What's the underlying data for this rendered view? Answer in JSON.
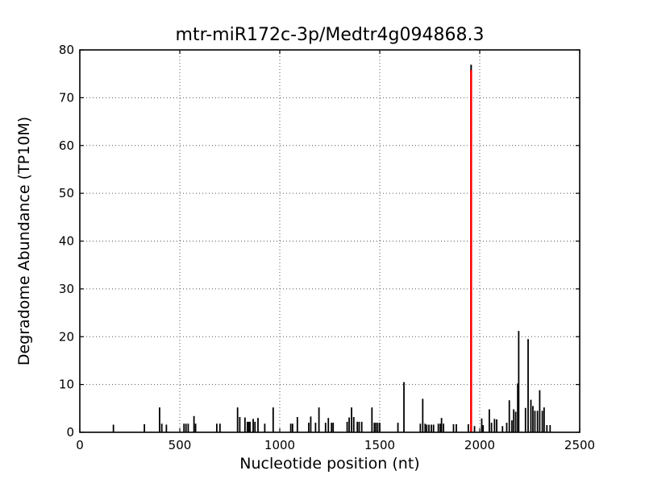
{
  "chart_data": {
    "type": "bar",
    "title": "mtr-miR172c-3p/Medtr4g094868.3",
    "xlabel": "Nucleotide position (nt)",
    "ylabel": "Degradome Abundance (TP10M)",
    "xlim": [
      0,
      2500
    ],
    "ylim": [
      0,
      80
    ],
    "xticks": [
      0,
      500,
      1000,
      1500,
      2000,
      2500
    ],
    "yticks": [
      0,
      10,
      20,
      30,
      40,
      50,
      60,
      70,
      80
    ],
    "grid": true,
    "grid_style": "dotted",
    "legend": "none",
    "bar_color": "#000000",
    "highlight_color": "#ff0000",
    "highlight_peak": {
      "x": 1957,
      "value": 76.5
    },
    "peaks": [
      [
        168,
        1.6
      ],
      [
        323,
        1.7
      ],
      [
        399,
        5.2
      ],
      [
        410,
        1.8
      ],
      [
        433,
        1.6
      ],
      [
        521,
        1.8
      ],
      [
        531,
        1.8
      ],
      [
        542,
        1.8
      ],
      [
        571,
        3.4
      ],
      [
        579,
        1.8
      ],
      [
        685,
        1.8
      ],
      [
        701,
        1.8
      ],
      [
        789,
        5.2
      ],
      [
        800,
        3.2
      ],
      [
        826,
        3.1
      ],
      [
        838,
        2.2
      ],
      [
        845,
        2.2
      ],
      [
        851,
        2.2
      ],
      [
        867,
        2.8
      ],
      [
        876,
        2.2
      ],
      [
        891,
        3.0
      ],
      [
        925,
        1.8
      ],
      [
        967,
        5.2
      ],
      [
        1055,
        1.8
      ],
      [
        1064,
        1.8
      ],
      [
        1088,
        3.2
      ],
      [
        1145,
        2.0
      ],
      [
        1155,
        3.3
      ],
      [
        1179,
        2.0
      ],
      [
        1196,
        5.2
      ],
      [
        1229,
        2.0
      ],
      [
        1243,
        3.0
      ],
      [
        1259,
        2.0
      ],
      [
        1267,
        2.0
      ],
      [
        1337,
        2.2
      ],
      [
        1347,
        3.1
      ],
      [
        1359,
        5.2
      ],
      [
        1370,
        3.2
      ],
      [
        1388,
        2.2
      ],
      [
        1397,
        2.2
      ],
      [
        1410,
        2.2
      ],
      [
        1461,
        5.2
      ],
      [
        1473,
        2.0
      ],
      [
        1481,
        2.0
      ],
      [
        1490,
        2.0
      ],
      [
        1500,
        2.0
      ],
      [
        1591,
        2.0
      ],
      [
        1621,
        10.5
      ],
      [
        1703,
        1.8
      ],
      [
        1715,
        7.0
      ],
      [
        1727,
        1.8
      ],
      [
        1735,
        1.6
      ],
      [
        1746,
        1.6
      ],
      [
        1758,
        1.6
      ],
      [
        1769,
        1.6
      ],
      [
        1793,
        1.8
      ],
      [
        1803,
        1.8
      ],
      [
        1809,
        3.0
      ],
      [
        1819,
        1.8
      ],
      [
        1869,
        1.7
      ],
      [
        1883,
        1.7
      ],
      [
        1943,
        1.7
      ],
      [
        1974,
        1.3
      ],
      [
        2010,
        2.9
      ],
      [
        2017,
        1.5
      ],
      [
        2048,
        4.8
      ],
      [
        2059,
        2.0
      ],
      [
        2074,
        2.8
      ],
      [
        2085,
        2.7
      ],
      [
        2114,
        1.3
      ],
      [
        2135,
        2.0
      ],
      [
        2148,
        6.7
      ],
      [
        2161,
        2.5
      ],
      [
        2170,
        4.8
      ],
      [
        2180,
        4.3
      ],
      [
        2190,
        10.2
      ],
      [
        2195,
        21.2
      ],
      [
        2229,
        5.1
      ],
      [
        2242,
        19.5
      ],
      [
        2256,
        6.8
      ],
      [
        2266,
        5.5
      ],
      [
        2276,
        4.5
      ],
      [
        2289,
        4.5
      ],
      [
        2300,
        8.8
      ],
      [
        2313,
        4.5
      ],
      [
        2322,
        5.2
      ],
      [
        2336,
        1.5
      ],
      [
        2352,
        1.5
      ]
    ]
  }
}
